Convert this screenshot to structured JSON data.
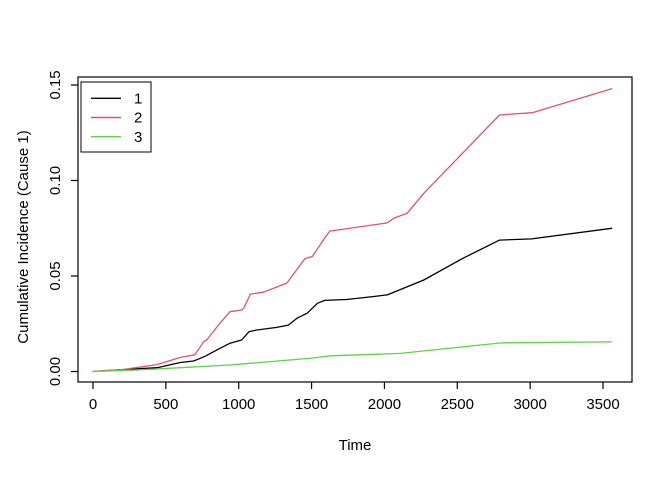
{
  "figure": {
    "background": "#ffffff",
    "axis_color": "#000000"
  },
  "chart_data": {
    "type": "line",
    "title": "",
    "xlabel": "Time",
    "ylabel": "Cumulative Incidence (Cause 1)",
    "xlim": [
      0,
      3500
    ],
    "ylim": [
      0,
      0.15
    ],
    "x_ticks": [
      0,
      500,
      1000,
      1500,
      2000,
      2500,
      3000,
      3500
    ],
    "y_ticks": [
      {
        "value": 0.0,
        "label": "0.00"
      },
      {
        "value": 0.05,
        "label": "0.05"
      },
      {
        "value": 0.1,
        "label": "0.10"
      },
      {
        "value": 0.15,
        "label": "0.15"
      }
    ],
    "grid": false,
    "legend": {
      "position": "top-left",
      "entries": [
        {
          "label": "1",
          "color": "#000000"
        },
        {
          "label": "2",
          "color": "#DF536B"
        },
        {
          "label": "3",
          "color": "#61D04F"
        }
      ]
    },
    "series": [
      {
        "name": "1",
        "color": "#000000",
        "points": [
          [
            0,
            0
          ],
          [
            100,
            0.0005
          ],
          [
            210,
            0.001
          ],
          [
            440,
            0.002
          ],
          [
            600,
            0.0047
          ],
          [
            690,
            0.0055
          ],
          [
            730,
            0.0067
          ],
          [
            770,
            0.008
          ],
          [
            870,
            0.0121
          ],
          [
            940,
            0.0148
          ],
          [
            1020,
            0.0165
          ],
          [
            1070,
            0.0208
          ],
          [
            1120,
            0.0217
          ],
          [
            1260,
            0.0231
          ],
          [
            1340,
            0.0243
          ],
          [
            1400,
            0.0279
          ],
          [
            1470,
            0.0305
          ],
          [
            1540,
            0.0357
          ],
          [
            1590,
            0.0372
          ],
          [
            1740,
            0.0377
          ],
          [
            1920,
            0.0392
          ],
          [
            2020,
            0.0401
          ],
          [
            2270,
            0.0479
          ],
          [
            2540,
            0.0593
          ],
          [
            2790,
            0.0688
          ],
          [
            3010,
            0.0694
          ],
          [
            3560,
            0.075
          ]
        ]
      },
      {
        "name": "2",
        "color": "#DF536B",
        "points": [
          [
            0,
            0
          ],
          [
            210,
            0.0011
          ],
          [
            440,
            0.0036
          ],
          [
            600,
            0.0074
          ],
          [
            700,
            0.0088
          ],
          [
            760,
            0.0156
          ],
          [
            780,
            0.0165
          ],
          [
            870,
            0.0252
          ],
          [
            940,
            0.0313
          ],
          [
            1020,
            0.0322
          ],
          [
            1035,
            0.0332
          ],
          [
            1080,
            0.0405
          ],
          [
            1170,
            0.0415
          ],
          [
            1260,
            0.0442
          ],
          [
            1330,
            0.0463
          ],
          [
            1455,
            0.0591
          ],
          [
            1505,
            0.0602
          ],
          [
            1605,
            0.0715
          ],
          [
            1625,
            0.0735
          ],
          [
            2020,
            0.0778
          ],
          [
            2065,
            0.0803
          ],
          [
            2155,
            0.0828
          ],
          [
            2270,
            0.0933
          ],
          [
            2790,
            0.1343
          ],
          [
            3015,
            0.1355
          ],
          [
            3560,
            0.148
          ]
        ]
      },
      {
        "name": "3",
        "color": "#61D04F",
        "points": [
          [
            0,
            0
          ],
          [
            300,
            0.0008
          ],
          [
            600,
            0.002
          ],
          [
            940,
            0.0034
          ],
          [
            1080,
            0.0043
          ],
          [
            1350,
            0.006
          ],
          [
            1500,
            0.007
          ],
          [
            1630,
            0.0082
          ],
          [
            2020,
            0.0092
          ],
          [
            2110,
            0.0095
          ],
          [
            2800,
            0.015
          ],
          [
            3560,
            0.0155
          ]
        ]
      }
    ]
  }
}
